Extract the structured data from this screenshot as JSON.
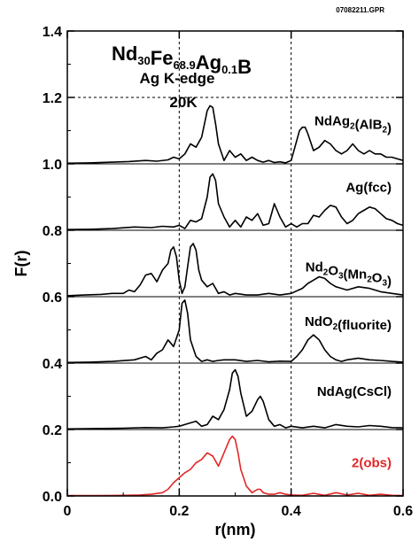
{
  "file_id": "07082211.GPR",
  "chart_data": {
    "type": "line",
    "title": {
      "line1": {
        "parts": [
          {
            "text": "Nd",
            "sub": false
          },
          {
            "text": "30",
            "sub": true
          },
          {
            "text": "Fe",
            "sub": false
          },
          {
            "text": "68.9",
            "sub": true
          },
          {
            "text": "Ag",
            "sub": false
          },
          {
            "text": "0.1",
            "sub": true
          },
          {
            "text": "B",
            "sub": false
          }
        ]
      },
      "line2": "Ag K-edge",
      "line3": "20K"
    },
    "xlabel": "r(nm)",
    "ylabel": "F(r)",
    "xlim": [
      0,
      0.6
    ],
    "ylim": [
      0,
      1.4
    ],
    "xticks": [
      "0",
      "0.2",
      "0.4",
      "0.6"
    ],
    "xtick_values": [
      0,
      0.2,
      0.4,
      0.6
    ],
    "yticks": [
      "0.0",
      "0.2",
      "0.4",
      "0.6",
      "0.8",
      "1.0",
      "1.2",
      "1.4"
    ],
    "ytick_values": [
      0,
      0.2,
      0.4,
      0.6,
      0.8,
      1.0,
      1.2,
      1.4
    ],
    "grid": "dashed at x=0.2, 0.4 and y=0.2, 0.4, 0.6, 0.8, 1.0, 1.2",
    "separators": [
      0.2,
      0.4,
      0.6,
      0.8,
      1.0
    ],
    "series": [
      {
        "name": "NdAg2(AlB2)",
        "label_parts": [
          {
            "text": "NdAg",
            "sub": false
          },
          {
            "text": "2",
            "sub": true
          },
          {
            "text": "(AlB",
            "sub": false
          },
          {
            "text": "2",
            "sub": true
          },
          {
            "text": ")",
            "sub": false
          }
        ],
        "color": "#000000",
        "x": [
          0,
          0.04,
          0.08,
          0.11,
          0.14,
          0.16,
          0.18,
          0.19,
          0.2,
          0.21,
          0.22,
          0.23,
          0.24,
          0.245,
          0.25,
          0.255,
          0.26,
          0.265,
          0.27,
          0.28,
          0.29,
          0.3,
          0.31,
          0.32,
          0.33,
          0.34,
          0.35,
          0.36,
          0.37,
          0.38,
          0.39,
          0.4,
          0.41,
          0.415,
          0.42,
          0.425,
          0.43,
          0.44,
          0.45,
          0.46,
          0.47,
          0.48,
          0.49,
          0.5,
          0.51,
          0.52,
          0.53,
          0.54,
          0.55,
          0.56,
          0.57,
          0.58,
          0.59,
          0.6
        ],
        "y": [
          1.002,
          1.003,
          1.005,
          1.007,
          1.01,
          1.008,
          1.012,
          1.02,
          1.015,
          1.03,
          1.06,
          1.05,
          1.08,
          1.12,
          1.16,
          1.175,
          1.17,
          1.12,
          1.06,
          1.01,
          1.04,
          1.02,
          1.03,
          1.01,
          1.02,
          1.01,
          1.005,
          1.01,
          1.004,
          1.006,
          1.003,
          1.01,
          1.07,
          1.1,
          1.11,
          1.11,
          1.09,
          1.04,
          1.05,
          1.07,
          1.06,
          1.04,
          1.03,
          1.04,
          1.06,
          1.04,
          1.03,
          1.04,
          1.03,
          1.03,
          1.02,
          1.02,
          1.015,
          1.01
        ]
      },
      {
        "name": "Ag(fcc)",
        "label_parts": [
          {
            "text": "Ag(fcc)",
            "sub": false
          }
        ],
        "color": "#000000",
        "x": [
          0,
          0.04,
          0.08,
          0.12,
          0.15,
          0.17,
          0.19,
          0.2,
          0.21,
          0.22,
          0.23,
          0.24,
          0.25,
          0.255,
          0.26,
          0.265,
          0.27,
          0.28,
          0.29,
          0.3,
          0.31,
          0.32,
          0.33,
          0.34,
          0.35,
          0.36,
          0.37,
          0.38,
          0.39,
          0.4,
          0.41,
          0.42,
          0.43,
          0.44,
          0.45,
          0.46,
          0.47,
          0.48,
          0.49,
          0.5,
          0.51,
          0.52,
          0.53,
          0.54,
          0.55,
          0.56,
          0.57,
          0.58,
          0.59,
          0.6
        ],
        "y": [
          0.802,
          0.803,
          0.805,
          0.81,
          0.808,
          0.812,
          0.81,
          0.815,
          0.805,
          0.83,
          0.825,
          0.835,
          0.9,
          0.96,
          0.97,
          0.95,
          0.88,
          0.84,
          0.81,
          0.83,
          0.81,
          0.84,
          0.83,
          0.85,
          0.815,
          0.82,
          0.88,
          0.84,
          0.81,
          0.82,
          0.81,
          0.82,
          0.82,
          0.845,
          0.84,
          0.86,
          0.875,
          0.87,
          0.84,
          0.82,
          0.83,
          0.85,
          0.86,
          0.87,
          0.865,
          0.85,
          0.835,
          0.83,
          0.82,
          0.815
        ]
      },
      {
        "name": "Nd2O3(Mn2O3)",
        "label_parts": [
          {
            "text": "Nd",
            "sub": false
          },
          {
            "text": "2",
            "sub": true
          },
          {
            "text": "O",
            "sub": false
          },
          {
            "text": "3",
            "sub": true
          },
          {
            "text": "(Mn",
            "sub": false
          },
          {
            "text": "2",
            "sub": true
          },
          {
            "text": "O",
            "sub": false
          },
          {
            "text": "3",
            "sub": true
          },
          {
            "text": ")",
            "sub": false
          }
        ],
        "color": "#000000",
        "x": [
          0,
          0.03,
          0.06,
          0.08,
          0.1,
          0.11,
          0.12,
          0.13,
          0.14,
          0.15,
          0.16,
          0.17,
          0.18,
          0.185,
          0.19,
          0.195,
          0.2,
          0.205,
          0.21,
          0.215,
          0.22,
          0.225,
          0.23,
          0.235,
          0.24,
          0.25,
          0.26,
          0.27,
          0.28,
          0.29,
          0.3,
          0.32,
          0.34,
          0.36,
          0.38,
          0.4,
          0.42,
          0.43,
          0.44,
          0.45,
          0.46,
          0.47,
          0.48,
          0.49,
          0.5,
          0.52,
          0.54,
          0.56,
          0.58,
          0.6
        ],
        "y": [
          0.603,
          0.605,
          0.607,
          0.61,
          0.61,
          0.62,
          0.615,
          0.635,
          0.665,
          0.67,
          0.645,
          0.68,
          0.7,
          0.74,
          0.75,
          0.72,
          0.65,
          0.61,
          0.63,
          0.69,
          0.75,
          0.76,
          0.74,
          0.68,
          0.65,
          0.63,
          0.64,
          0.61,
          0.615,
          0.605,
          0.61,
          0.605,
          0.605,
          0.61,
          0.605,
          0.61,
          0.625,
          0.64,
          0.65,
          0.66,
          0.655,
          0.64,
          0.63,
          0.625,
          0.62,
          0.63,
          0.625,
          0.615,
          0.61,
          0.605
        ]
      },
      {
        "name": "NdO2(fluorite)",
        "label_parts": [
          {
            "text": "NdO",
            "sub": false
          },
          {
            "text": "2",
            "sub": true
          },
          {
            "text": "(fluorite)",
            "sub": false
          }
        ],
        "color": "#000000",
        "x": [
          0,
          0.04,
          0.08,
          0.12,
          0.14,
          0.15,
          0.16,
          0.17,
          0.18,
          0.19,
          0.2,
          0.205,
          0.21,
          0.215,
          0.22,
          0.23,
          0.24,
          0.25,
          0.26,
          0.27,
          0.28,
          0.3,
          0.32,
          0.34,
          0.36,
          0.38,
          0.4,
          0.41,
          0.42,
          0.43,
          0.44,
          0.45,
          0.46,
          0.47,
          0.48,
          0.49,
          0.5,
          0.52,
          0.54,
          0.56,
          0.58,
          0.6
        ],
        "y": [
          0.402,
          0.403,
          0.405,
          0.41,
          0.42,
          0.41,
          0.43,
          0.44,
          0.47,
          0.45,
          0.5,
          0.58,
          0.59,
          0.55,
          0.47,
          0.42,
          0.405,
          0.41,
          0.405,
          0.408,
          0.41,
          0.41,
          0.405,
          0.408,
          0.404,
          0.406,
          0.405,
          0.42,
          0.44,
          0.47,
          0.485,
          0.47,
          0.44,
          0.42,
          0.41,
          0.405,
          0.41,
          0.415,
          0.41,
          0.408,
          0.405,
          0.403
        ]
      },
      {
        "name": "NdAg(CsCl)",
        "label_parts": [
          {
            "text": "NdAg(CsCl)",
            "sub": false
          }
        ],
        "color": "#000000",
        "x": [
          0,
          0.05,
          0.1,
          0.14,
          0.17,
          0.19,
          0.2,
          0.21,
          0.22,
          0.23,
          0.24,
          0.25,
          0.26,
          0.27,
          0.28,
          0.29,
          0.295,
          0.3,
          0.305,
          0.31,
          0.32,
          0.33,
          0.34,
          0.345,
          0.35,
          0.36,
          0.37,
          0.38,
          0.39,
          0.4,
          0.42,
          0.44,
          0.46,
          0.48,
          0.5,
          0.52,
          0.54,
          0.56,
          0.58,
          0.6
        ],
        "y": [
          0.202,
          0.203,
          0.204,
          0.206,
          0.205,
          0.208,
          0.21,
          0.215,
          0.22,
          0.225,
          0.21,
          0.215,
          0.24,
          0.23,
          0.26,
          0.32,
          0.37,
          0.38,
          0.36,
          0.31,
          0.24,
          0.255,
          0.29,
          0.3,
          0.285,
          0.23,
          0.21,
          0.215,
          0.205,
          0.21,
          0.205,
          0.21,
          0.205,
          0.215,
          0.21,
          0.208,
          0.212,
          0.21,
          0.206,
          0.205
        ]
      },
      {
        "name": "2(obs)",
        "label_parts": [
          {
            "text": "2(obs)",
            "sub": false
          }
        ],
        "color": "#e32626",
        "x": [
          0,
          0.05,
          0.1,
          0.13,
          0.15,
          0.17,
          0.18,
          0.19,
          0.2,
          0.21,
          0.22,
          0.23,
          0.24,
          0.25,
          0.26,
          0.27,
          0.28,
          0.29,
          0.295,
          0.3,
          0.305,
          0.31,
          0.32,
          0.33,
          0.34,
          0.345,
          0.35,
          0.36,
          0.37,
          0.38,
          0.39,
          0.4,
          0.42,
          0.44,
          0.46,
          0.48,
          0.5,
          0.52,
          0.54,
          0.56,
          0.58,
          0.6
        ],
        "y": [
          0.001,
          0.001,
          0.002,
          0.003,
          0.005,
          0.01,
          0.02,
          0.04,
          0.055,
          0.07,
          0.08,
          0.1,
          0.11,
          0.13,
          0.12,
          0.09,
          0.13,
          0.17,
          0.18,
          0.17,
          0.13,
          0.08,
          0.03,
          0.01,
          0.02,
          0.02,
          0.01,
          0.005,
          0.005,
          0.01,
          0.005,
          0.003,
          0.002,
          0.008,
          0.002,
          0.01,
          0.003,
          0.008,
          0.002,
          0.005,
          0.002,
          0.001
        ]
      }
    ],
    "label_anchor_y": [
      1.13,
      0.93,
      0.69,
      0.525,
      0.315,
      0.1
    ]
  }
}
